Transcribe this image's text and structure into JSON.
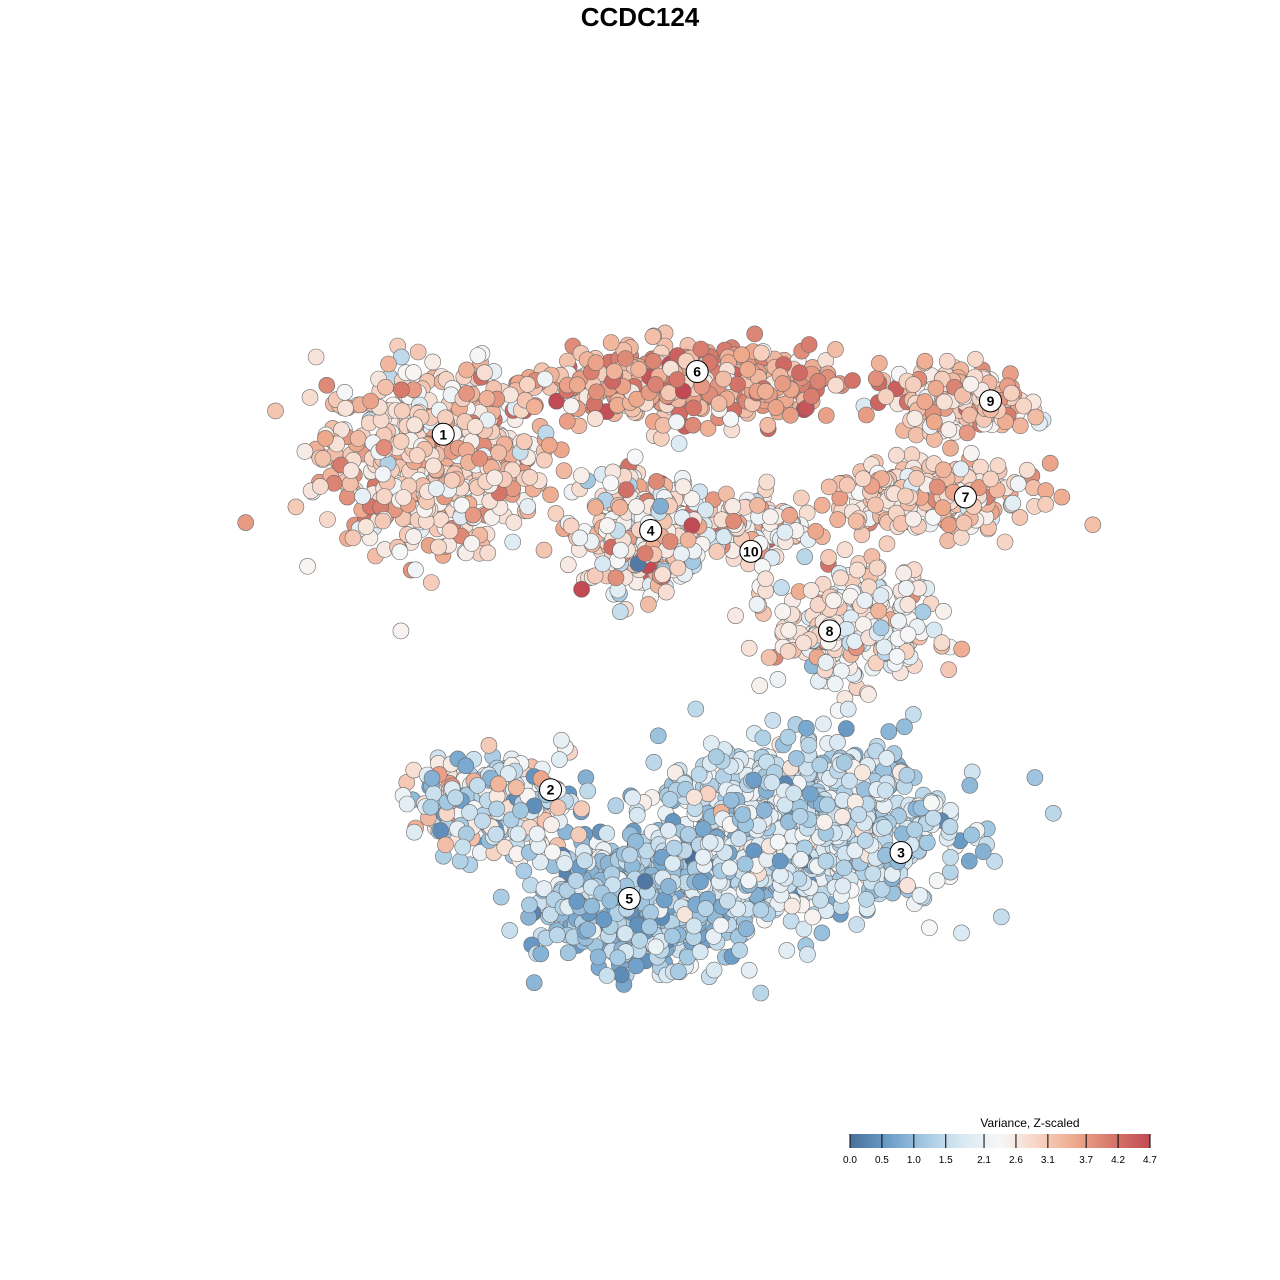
{
  "chart_data": {
    "type": "scatter",
    "title": "CCDC124",
    "xlabel": "",
    "ylabel": "",
    "grid": false,
    "axes_visible": false,
    "legend": {
      "title": "Variance, Z-scaled",
      "placement": "bottom-right",
      "ticks": [
        "0.0",
        "0.5",
        "1.0",
        "1.5",
        "2.1",
        "2.6",
        "3.1",
        "3.7",
        "4.2",
        "4.7"
      ],
      "range": [
        0.0,
        4.7
      ],
      "colors": [
        "#4a6f9c",
        "#6a9cc8",
        "#a4c9e2",
        "#d9e9f3",
        "#f7f7f7",
        "#f7d4c4",
        "#eea98d",
        "#d6776a",
        "#c24a54"
      ]
    },
    "cluster_labels": [
      {
        "label": "1",
        "x": -6.2,
        "y": 5.8
      },
      {
        "label": "2",
        "x": -3.2,
        "y": -2.7
      },
      {
        "label": "3",
        "x": 6.6,
        "y": -4.2
      },
      {
        "label": "4",
        "x": -0.4,
        "y": 3.5
      },
      {
        "label": "5",
        "x": -1.0,
        "y": -5.3
      },
      {
        "label": "6",
        "x": 0.9,
        "y": 7.3
      },
      {
        "label": "7",
        "x": 8.4,
        "y": 4.3
      },
      {
        "label": "8",
        "x": 4.6,
        "y": 1.1
      },
      {
        "label": "9",
        "x": 9.1,
        "y": 6.6
      },
      {
        "label": "10",
        "x": 2.4,
        "y": 3.0
      }
    ],
    "clusters": [
      {
        "label": "1",
        "n": 650,
        "cx": -6.5,
        "cy": 5.3,
        "sx": 2.8,
        "sy": 1.9,
        "mean": 2.9,
        "sd": 0.55
      },
      {
        "label": "6",
        "n": 520,
        "cx": 0.8,
        "cy": 7.0,
        "sx": 3.6,
        "sy": 0.75,
        "mean": 3.4,
        "sd": 0.55
      },
      {
        "label": "4",
        "n": 360,
        "cx": -0.6,
        "cy": 3.4,
        "sx": 1.5,
        "sy": 1.2,
        "mean": 2.7,
        "sd": 0.85
      },
      {
        "label": "10",
        "n": 110,
        "cx": 2.6,
        "cy": 3.6,
        "sx": 1.5,
        "sy": 0.8,
        "mean": 2.7,
        "sd": 0.7
      },
      {
        "label": "9",
        "n": 190,
        "cx": 8.3,
        "cy": 6.6,
        "sx": 1.7,
        "sy": 0.7,
        "mean": 3.0,
        "sd": 0.5
      },
      {
        "label": "7",
        "n": 250,
        "cx": 7.4,
        "cy": 4.3,
        "sx": 2.6,
        "sy": 0.7,
        "mean": 3.0,
        "sd": 0.5
      },
      {
        "label": "8",
        "n": 300,
        "cx": 5.3,
        "cy": 1.2,
        "sx": 2.0,
        "sy": 1.3,
        "mean": 2.5,
        "sd": 0.55
      },
      {
        "label": "2",
        "n": 300,
        "cx": -4.8,
        "cy": -3.0,
        "sx": 1.9,
        "sy": 1.0,
        "mean": 1.9,
        "sd": 0.85
      },
      {
        "label": "3",
        "n": 1050,
        "cx": 3.8,
        "cy": -3.6,
        "sx": 3.6,
        "sy": 1.8,
        "mean": 1.6,
        "sd": 0.5
      },
      {
        "label": "5",
        "n": 750,
        "cx": -0.7,
        "cy": -5.4,
        "sx": 2.4,
        "sy": 1.3,
        "mean": 1.25,
        "sd": 0.45
      }
    ],
    "xlim": [
      -13,
      13
    ],
    "ylim": [
      -10,
      12
    ]
  }
}
